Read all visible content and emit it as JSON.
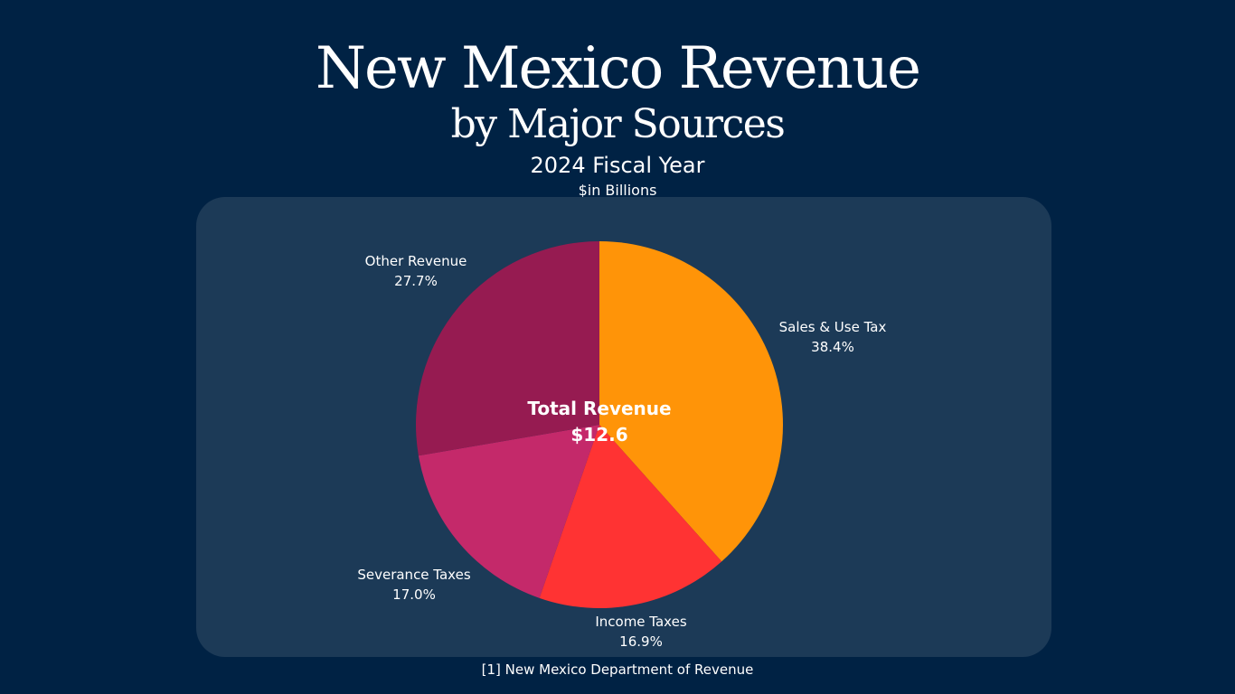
{
  "header": {
    "title": "New Mexico Revenue",
    "subtitle": "by Major Sources",
    "fiscal_year": "2024 Fiscal Year",
    "units": "$in Billions"
  },
  "center": {
    "label": "Total Revenue",
    "value": "$12.6"
  },
  "footer": {
    "source": "[1] New Mexico Department of Revenue"
  },
  "chart_data": {
    "type": "pie",
    "title": "New Mexico Revenue by Major Sources",
    "slices": [
      {
        "name": "Sales & Use Tax",
        "value": 38.4,
        "pct_label": "38.4%",
        "color": "#ff9408"
      },
      {
        "name": "Income Taxes",
        "value": 16.9,
        "pct_label": "16.9%",
        "color": "#ff3333"
      },
      {
        "name": "Severance Taxes",
        "value": 17.0,
        "pct_label": "17.0%",
        "color": "#c4296a"
      },
      {
        "name": "Other Revenue",
        "value": 27.7,
        "pct_label": "27.7%",
        "color": "#961b51"
      }
    ],
    "total": 12.6,
    "legend": "none",
    "start_angle": "12 o'clock",
    "direction": "clockwise"
  }
}
